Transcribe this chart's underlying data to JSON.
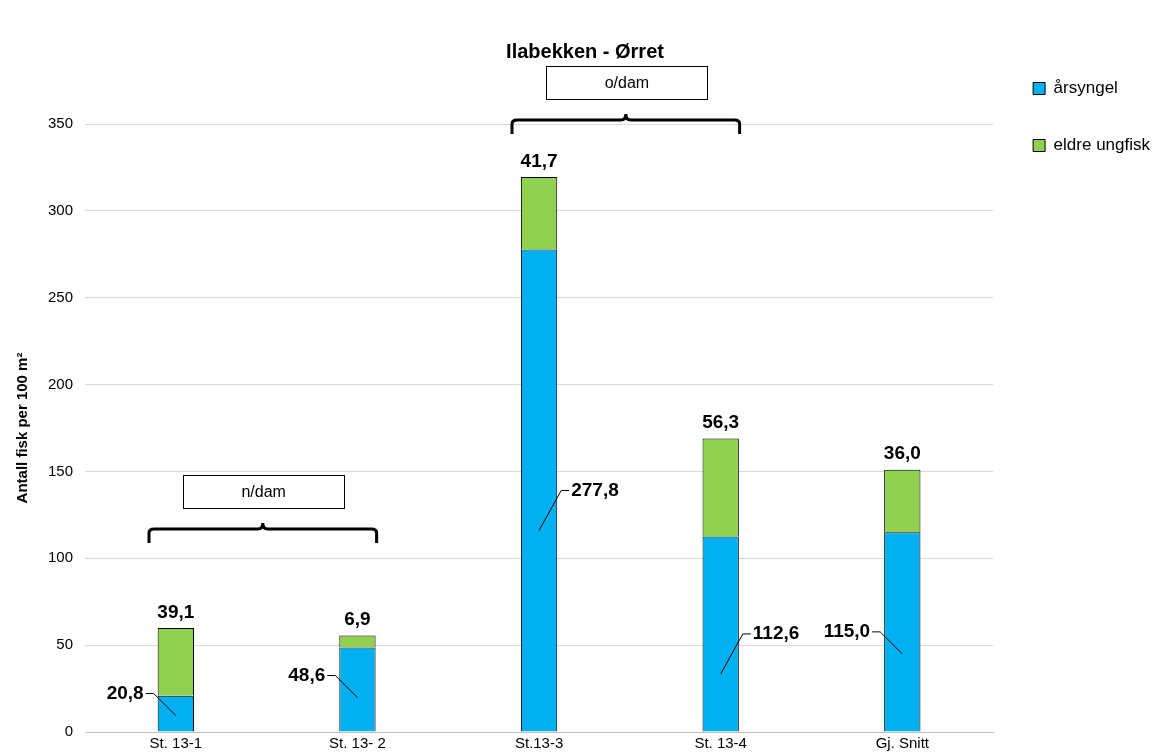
{
  "chart_data": {
    "type": "bar",
    "title": "Ilabekken - Ørret",
    "ylabel": "Antall fisk per 100 m²",
    "categories": [
      "St. 13-1",
      "St. 13- 2",
      "St.13-3",
      "St. 13-4",
      "Gj. Snitt"
    ],
    "stacked": true,
    "series": [
      {
        "name": "årsyngel",
        "color": "#00b0f0",
        "values": [
          20.8,
          48.6,
          277.8,
          112.6,
          115.0
        ],
        "value_labels": [
          "20,8",
          "48,6",
          "277,8",
          "112,6",
          "115,0"
        ]
      },
      {
        "name": "eldre ungfisk",
        "color": "#92d050",
        "values": [
          39.1,
          6.9,
          41.7,
          56.3,
          36.0
        ],
        "value_labels": [
          "39,1",
          "6,9",
          "41,7",
          "56,3",
          "36,0"
        ]
      }
    ],
    "ylim": [
      0,
      350
    ],
    "yticks": [
      0,
      50,
      100,
      150,
      200,
      250,
      300,
      350
    ],
    "grid": "y",
    "legend": "top right",
    "annotations": [
      "n/dam",
      "o/dam"
    ]
  }
}
